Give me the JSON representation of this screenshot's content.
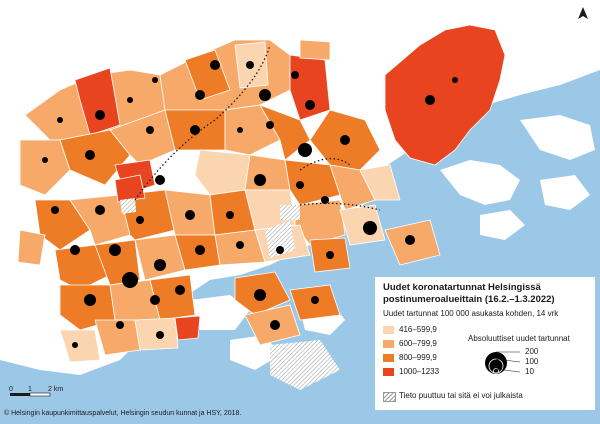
{
  "legend": {
    "title": "Uudet koronatartunnat Helsingissä postinumeroalueittain (16.2.–1.3.2022)",
    "subtitle": "Uudet tartunnat 100 000 asukasta kohden, 14 vrk",
    "classes": [
      {
        "label": "416–599,9",
        "color": "#fbd5b0"
      },
      {
        "label": "600–799,9",
        "color": "#f7a96a"
      },
      {
        "label": "800–999,9",
        "color": "#ee7b25"
      },
      {
        "label": "1000–1233",
        "color": "#e8441f"
      }
    ],
    "absolute_title": "Absoluuttiset uudet tartunnat",
    "absolute_values": [
      "200",
      "100",
      "10"
    ],
    "missing_label": "Tieto puuttuu tai sitä ei voi julkaista"
  },
  "scale": {
    "labels": [
      "0",
      "1",
      "2 km"
    ]
  },
  "credit": "© Helsingin kaupunkimittauspalvelut, Helsingin seudun kunnat ja HSY, 2018.",
  "colors": {
    "sea": "#9cc8e8",
    "land": "#ffffff",
    "border": "#ffffff",
    "bubble": "#000000",
    "boundary_line": "#1a1a1a"
  }
}
